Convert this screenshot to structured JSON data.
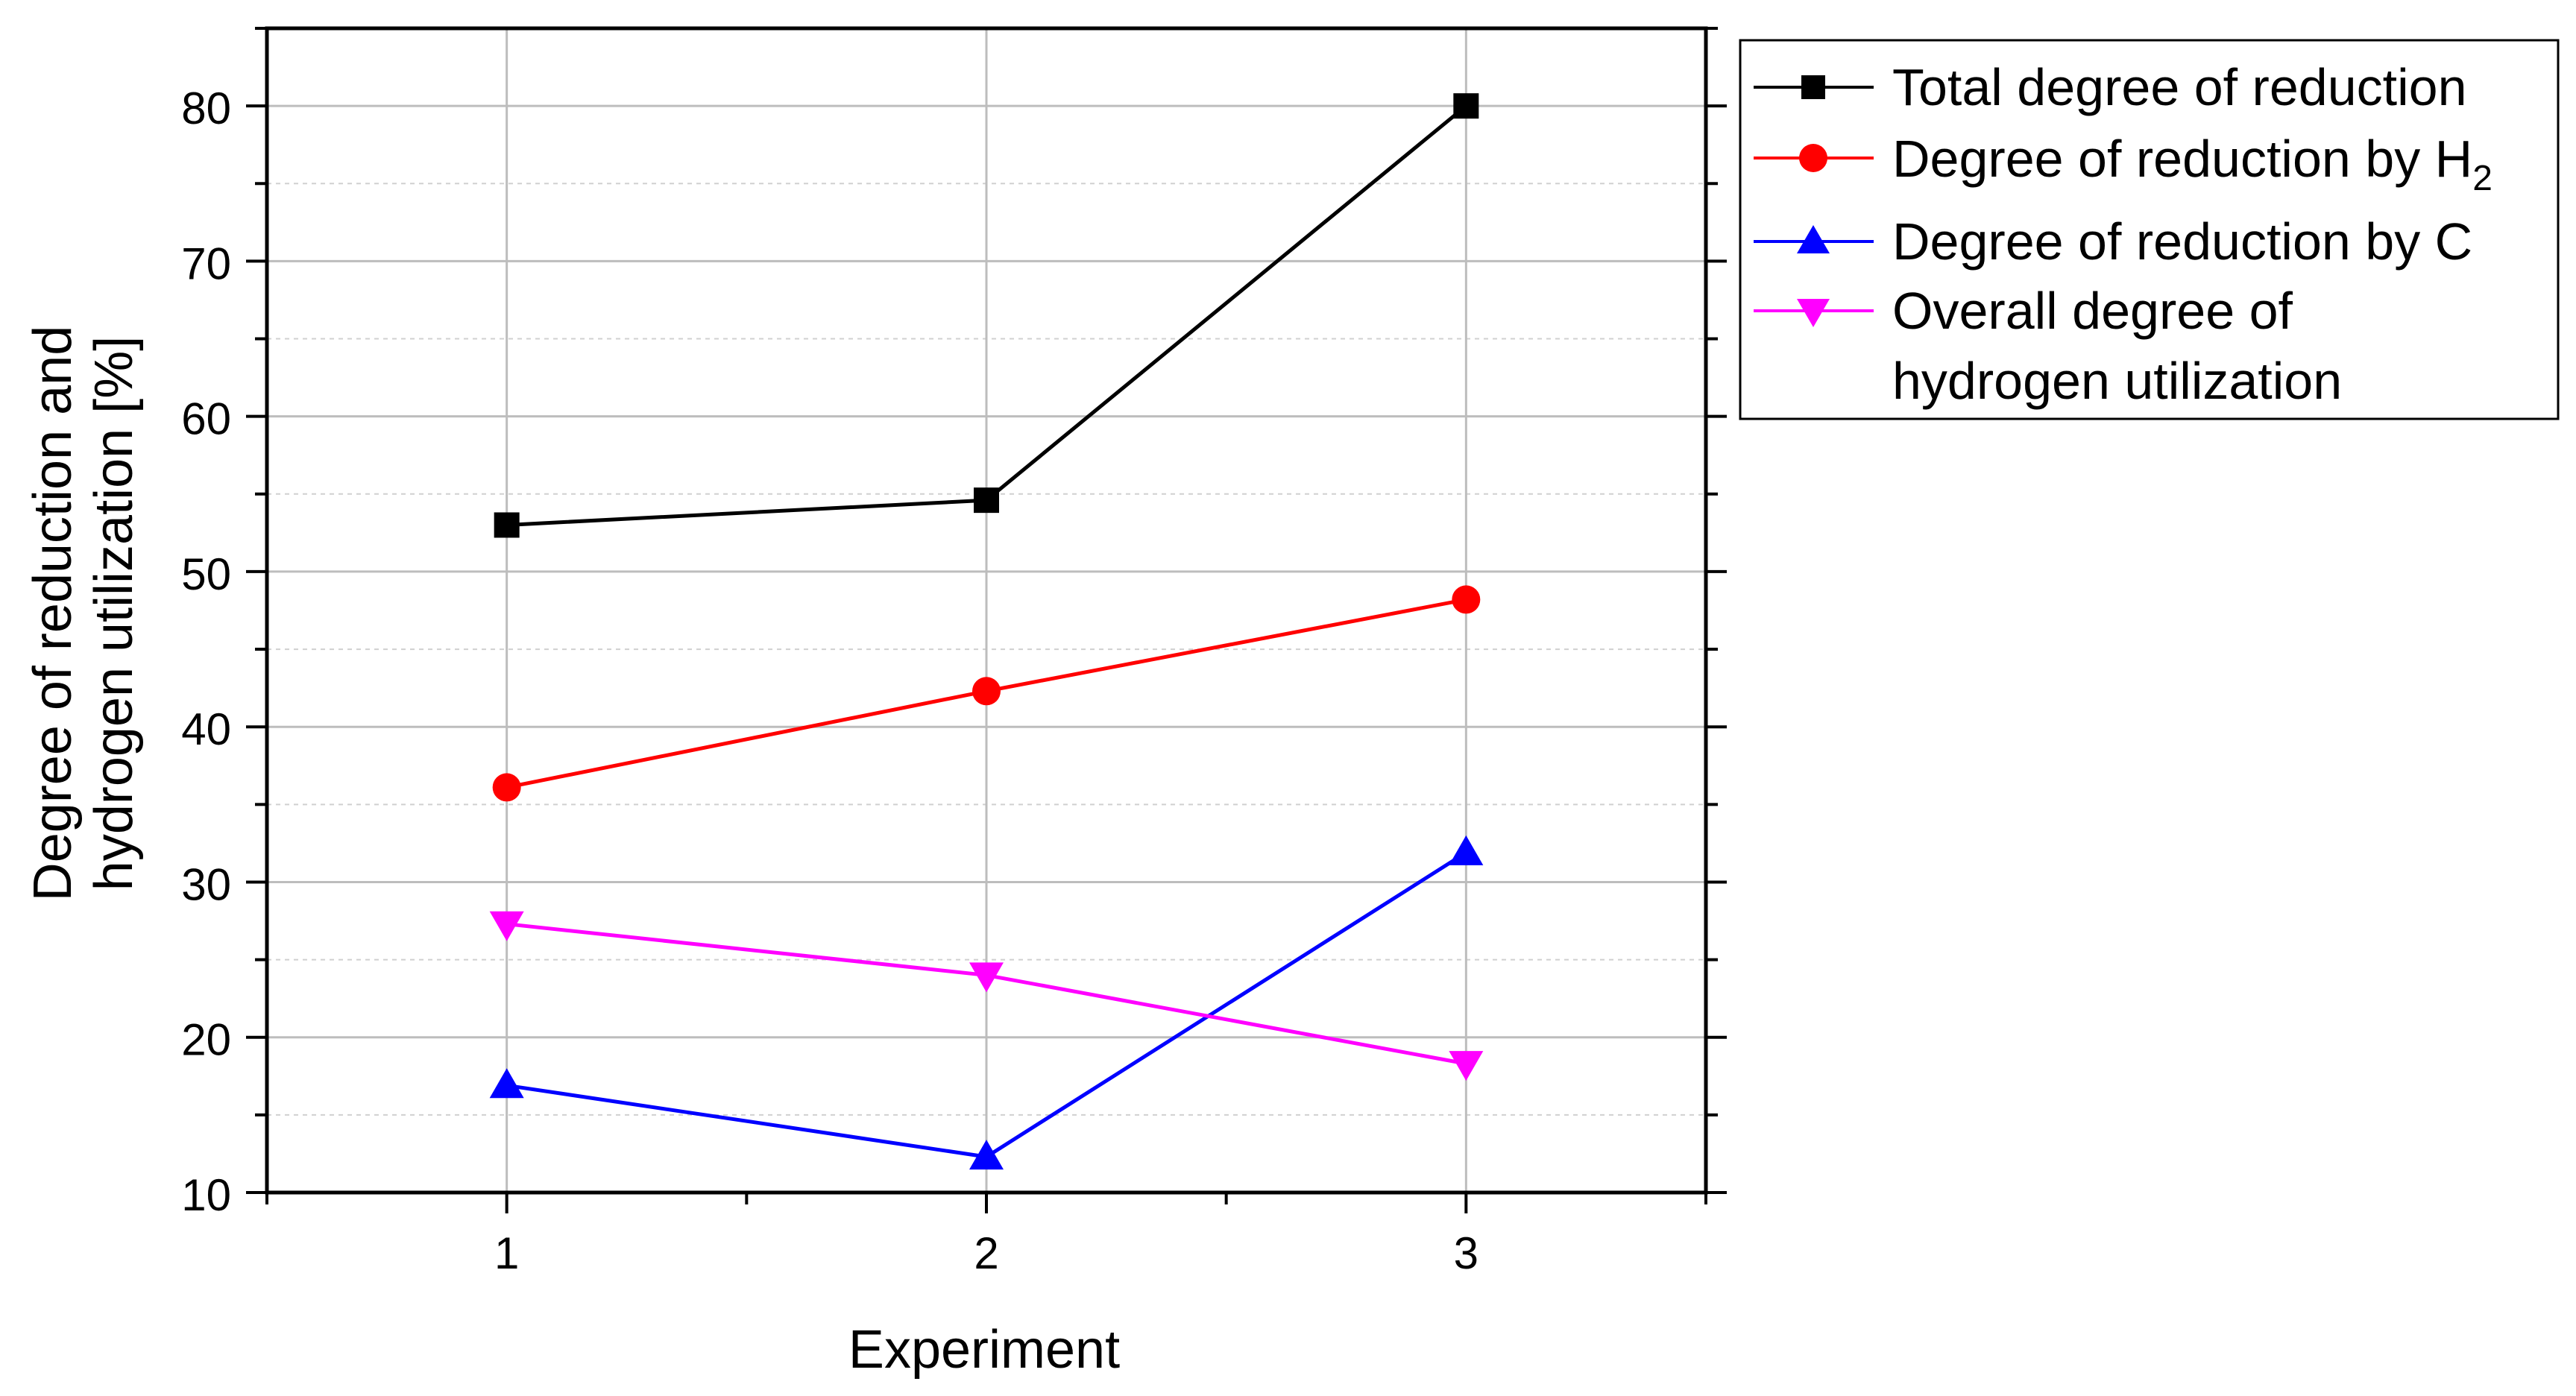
{
  "chart_data": {
    "type": "line",
    "title": "",
    "xlabel": "Experiment",
    "ylabel_line1": "Degree of reduction and",
    "ylabel_line2": "hydrogen utilization [%]",
    "x": [
      1,
      2,
      3
    ],
    "x_tick_labels": [
      "1",
      "2",
      "3"
    ],
    "xlim": [
      0.5,
      3.5
    ],
    "ylim": [
      10,
      85
    ],
    "y_ticks": [
      10,
      20,
      30,
      40,
      50,
      60,
      70,
      80
    ],
    "y_tick_labels": [
      "10",
      "20",
      "30",
      "40",
      "50",
      "60",
      "70",
      "80"
    ],
    "grid": true,
    "legend_position": "top-right-outside",
    "series": [
      {
        "name": "Total degree of reduction",
        "color": "#000000",
        "marker": "square",
        "values": [
          53.0,
          54.6,
          80.0
        ]
      },
      {
        "name": "Degree of reduction by H",
        "name_subscript": "2",
        "color": "#ff0000",
        "marker": "circle",
        "values": [
          36.1,
          42.3,
          48.2
        ]
      },
      {
        "name": "Degree of reduction by C",
        "color": "#0000ff",
        "marker": "triangle-up",
        "values": [
          16.9,
          12.3,
          31.9
        ]
      },
      {
        "name": "Overall degree of",
        "name_line2": "hydrogen utilization",
        "color": "#ff00ff",
        "marker": "triangle-down",
        "values": [
          27.3,
          24.0,
          18.3
        ]
      }
    ]
  }
}
